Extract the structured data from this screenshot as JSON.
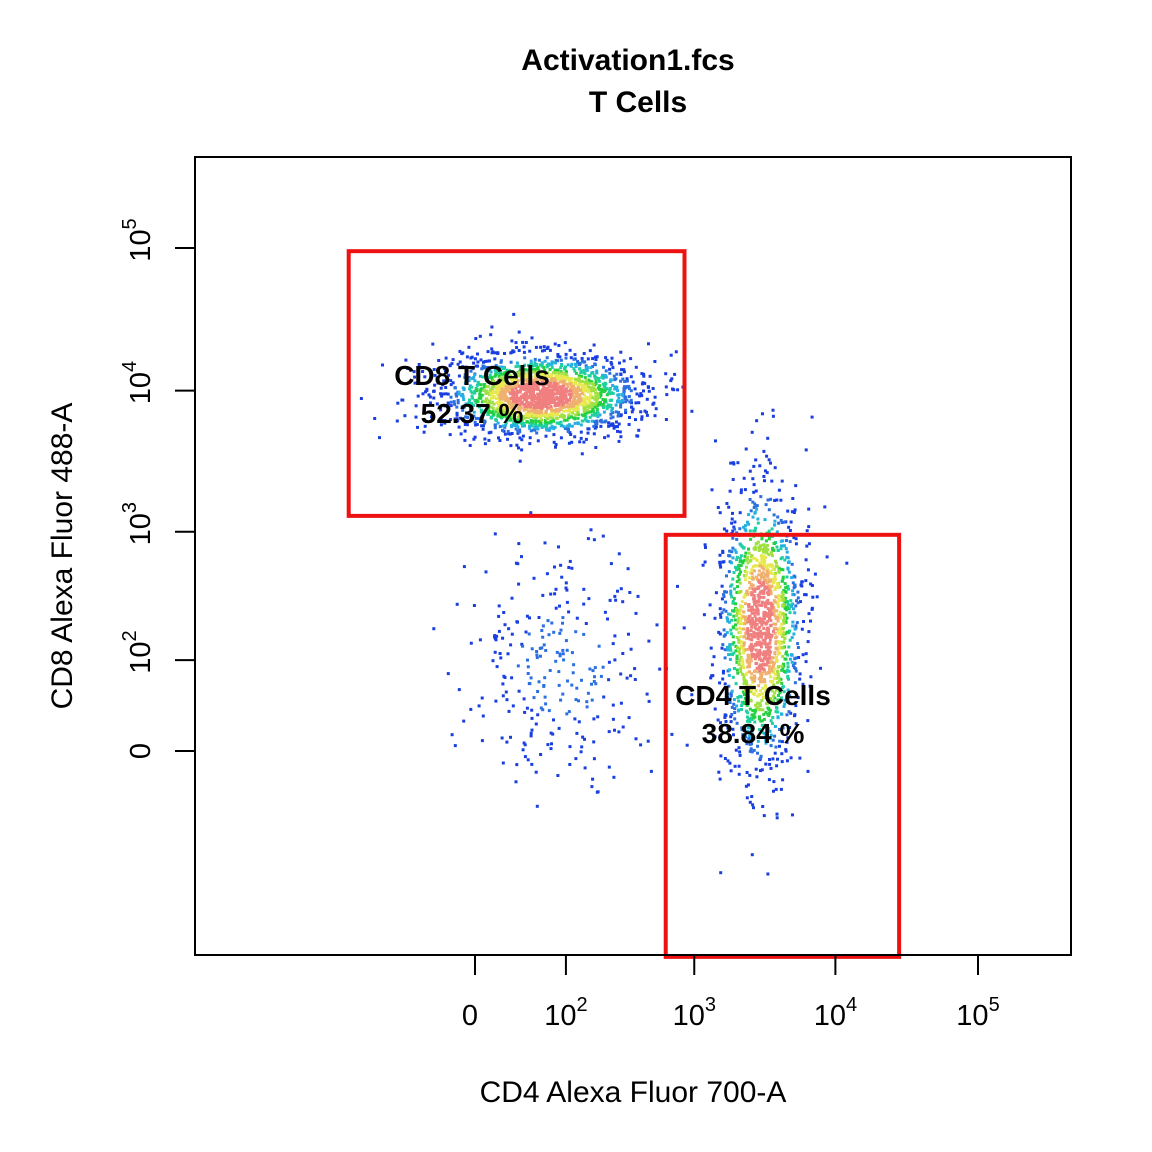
{
  "chart_data": {
    "type": "scatter",
    "title": "Activation1.fcs",
    "subtitle": "T Cells",
    "xlabel": "CD4 Alexa Fluor 700-A",
    "ylabel": "CD8 Alexa Fluor 488-A",
    "scale": "biexponential",
    "xlim": [
      -300,
      250000
    ],
    "ylim": [
      -1000,
      220000
    ],
    "x_ticks": [
      {
        "value": 0,
        "base": "0",
        "exp": ""
      },
      {
        "value": 100,
        "base": "10",
        "exp": "2"
      },
      {
        "value": 1000,
        "base": "10",
        "exp": "3"
      },
      {
        "value": 10000,
        "base": "10",
        "exp": "4"
      },
      {
        "value": 100000,
        "base": "10",
        "exp": "5"
      }
    ],
    "y_ticks": [
      {
        "value": 0,
        "base": "0",
        "exp": ""
      },
      {
        "value": 100,
        "base": "10",
        "exp": "2"
      },
      {
        "value": 1000,
        "base": "10",
        "exp": "3"
      },
      {
        "value": 10000,
        "base": "10",
        "exp": "4"
      },
      {
        "value": 100000,
        "base": "10",
        "exp": "5"
      }
    ],
    "grid": false,
    "legend": "none",
    "density_palette": [
      "#1a3fe0",
      "#2b6fe0",
      "#24b0e0",
      "#1fd0a0",
      "#22d040",
      "#a0e040",
      "#e8e850",
      "#f0b070",
      "#f08080"
    ],
    "gate_color": "#ee1111",
    "populations": [
      {
        "x_center": 55,
        "y_center": 9500,
        "spread_x": 0.38,
        "spread_y": 0.16,
        "n": 2000
      },
      {
        "x_center": 2900,
        "y_center": 200,
        "spread_x": 0.16,
        "spread_y": 0.55,
        "n": 1500
      },
      {
        "x_center": 90,
        "y_center": 90,
        "spread_x": 0.4,
        "spread_y": 0.45,
        "n": 280
      }
    ],
    "gates": [
      {
        "label": "CD8 T Cells",
        "percent": "52.37 %",
        "x_range": [
          -200,
          850
        ],
        "y_range": [
          1300,
          95000
        ]
      },
      {
        "label": "CD4 T Cells",
        "percent": "38.84 %",
        "x_range": [
          620,
          28000
        ],
        "y_range": [
          -800,
          950
        ]
      }
    ]
  }
}
